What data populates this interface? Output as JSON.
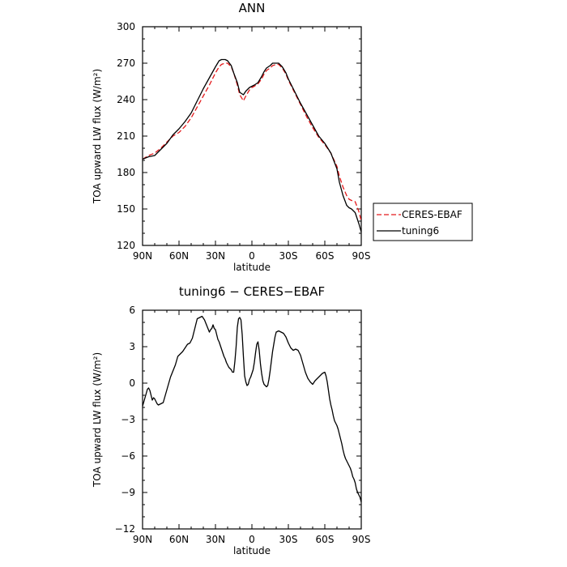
{
  "chart_data": [
    {
      "type": "line",
      "title": "ANN",
      "xlabel": "latitude",
      "ylabel": "TOA upward LW flux (W/m²)",
      "xlim": [
        90,
        -90
      ],
      "ylim": [
        120,
        300
      ],
      "xticks": [
        90,
        60,
        30,
        0,
        -30,
        -60,
        -90
      ],
      "xtick_labels": [
        "90N",
        "60N",
        "30N",
        "0",
        "30S",
        "60S",
        "90S"
      ],
      "yticks": [
        120,
        150,
        180,
        210,
        240,
        270,
        300
      ],
      "ytick_labels": [
        "120",
        "150",
        "180",
        "210",
        "240",
        "270",
        "300"
      ],
      "legend": {
        "position": "right-outside",
        "entries": [
          "CERES-EBAF",
          "tuning6"
        ]
      },
      "series": [
        {
          "name": "CERES-EBAF",
          "color": "#e41a1c",
          "dash": "dashed",
          "x": [
            90,
            85,
            80,
            75,
            70,
            65,
            60,
            55,
            50,
            45,
            40,
            35,
            30,
            27,
            25,
            22,
            20,
            17,
            15,
            12,
            10,
            7,
            5,
            2,
            0,
            -2,
            -5,
            -8,
            -10,
            -12,
            -15,
            -17,
            -20,
            -22,
            -25,
            -28,
            -30,
            -35,
            -40,
            -45,
            -50,
            -55,
            -60,
            -65,
            -70,
            -72,
            -75,
            -78,
            -80,
            -82,
            -85,
            -88,
            -90
          ],
          "y": [
            191,
            194,
            196,
            200,
            205,
            210,
            213,
            218,
            225,
            234,
            243,
            252,
            262,
            267,
            269,
            270,
            270,
            267,
            262,
            252,
            244,
            239,
            243,
            248,
            250,
            251,
            253,
            257,
            261,
            264,
            266,
            268,
            269,
            269,
            266,
            261,
            256,
            246,
            236,
            226,
            217,
            209,
            203,
            196,
            185,
            177,
            168,
            161,
            158,
            157,
            156,
            148,
            140
          ]
        },
        {
          "name": "tuning6",
          "color": "#000000",
          "dash": "solid",
          "x": [
            90,
            85,
            80,
            75,
            70,
            65,
            60,
            55,
            50,
            45,
            40,
            35,
            30,
            27,
            25,
            22,
            20,
            17,
            15,
            12,
            10,
            7,
            5,
            2,
            0,
            -2,
            -5,
            -8,
            -10,
            -12,
            -15,
            -17,
            -20,
            -22,
            -25,
            -28,
            -30,
            -35,
            -40,
            -45,
            -50,
            -55,
            -60,
            -65,
            -70,
            -72,
            -75,
            -78,
            -80,
            -82,
            -85,
            -88,
            -90
          ],
          "y": [
            191,
            193,
            194,
            199,
            204,
            211,
            216,
            222,
            229,
            239,
            249,
            258,
            267,
            272,
            273,
            273,
            272,
            268,
            262,
            254,
            246,
            244,
            247,
            250,
            251,
            252,
            254,
            259,
            263,
            266,
            268,
            270,
            270,
            270,
            267,
            262,
            257,
            247,
            237,
            228,
            219,
            210,
            204,
            196,
            183,
            172,
            161,
            153,
            151,
            150,
            147,
            138,
            131
          ]
        }
      ]
    },
    {
      "type": "line",
      "title": "tuning6 − CERES−EBAF",
      "xlabel": "latitude",
      "ylabel": "TOA upward LW flux (W/m²)",
      "xlim": [
        90,
        -90
      ],
      "ylim": [
        -12,
        6
      ],
      "xticks": [
        90,
        60,
        30,
        0,
        -30,
        -60,
        -90
      ],
      "xtick_labels": [
        "90N",
        "60N",
        "30N",
        "0",
        "30S",
        "60S",
        "90S"
      ],
      "yticks": [
        -12,
        -9,
        -6,
        -3,
        0,
        3,
        6
      ],
      "ytick_labels": [
        "−12",
        "−9",
        "−6",
        "−3",
        "0",
        "3",
        "6"
      ],
      "series": [
        {
          "color": "#000000",
          "dash": "solid",
          "x": [
            90,
            88,
            86,
            85,
            84,
            83,
            82,
            81,
            80,
            79,
            78,
            77,
            75,
            73,
            71,
            69,
            67,
            65,
            63,
            61,
            59,
            57,
            55,
            53,
            51,
            49,
            47,
            45,
            43,
            41,
            39,
            37,
            35,
            34,
            33,
            32,
            31,
            30,
            29,
            28,
            27,
            26,
            25,
            24,
            23,
            22,
            21,
            20,
            19,
            18,
            17,
            16,
            15,
            14,
            13,
            12,
            11,
            10,
            9,
            8,
            7,
            6,
            5,
            4,
            3,
            2,
            1,
            0,
            -1,
            -2,
            -3,
            -4,
            -5,
            -6,
            -7,
            -8,
            -9,
            -10,
            -11,
            -12,
            -13,
            -14,
            -15,
            -16,
            -17,
            -18,
            -19,
            -20,
            -22,
            -24,
            -26,
            -28,
            -30,
            -32,
            -34,
            -36,
            -38,
            -40,
            -42,
            -44,
            -46,
            -48,
            -50,
            -52,
            -54,
            -56,
            -58,
            -60,
            -61,
            -62,
            -63,
            -64,
            -65,
            -66,
            -67,
            -68,
            -69,
            -70,
            -71,
            -72,
            -73,
            -74,
            -75,
            -76,
            -77,
            -78,
            -79,
            -80,
            -81,
            -82,
            -83,
            -84,
            -85,
            -86,
            -87,
            -88,
            -89,
            -90
          ],
          "y": [
            -1.9,
            -1.2,
            -0.5,
            -0.4,
            -0.6,
            -1.0,
            -1.4,
            -1.2,
            -1.3,
            -1.5,
            -1.7,
            -1.8,
            -1.7,
            -1.6,
            -0.9,
            -0.2,
            0.5,
            1.0,
            1.5,
            2.2,
            2.4,
            2.6,
            2.9,
            3.2,
            3.3,
            3.7,
            4.5,
            5.3,
            5.4,
            5.5,
            5.2,
            4.7,
            4.2,
            4.4,
            4.5,
            4.8,
            4.5,
            4.4,
            4.0,
            3.6,
            3.4,
            3.1,
            2.8,
            2.5,
            2.2,
            2.0,
            1.7,
            1.5,
            1.3,
            1.2,
            1.1,
            0.9,
            0.9,
            1.8,
            3.0,
            4.6,
            5.3,
            5.4,
            5.2,
            4.0,
            2.2,
            0.6,
            0.1,
            -0.2,
            -0.1,
            0.3,
            0.5,
            0.8,
            1.1,
            1.7,
            2.5,
            3.2,
            3.4,
            2.7,
            1.6,
            0.8,
            0.2,
            -0.1,
            -0.2,
            -0.3,
            -0.2,
            0.3,
            1.0,
            1.8,
            2.6,
            3.2,
            3.8,
            4.2,
            4.3,
            4.2,
            4.1,
            3.8,
            3.3,
            2.9,
            2.7,
            2.8,
            2.7,
            2.3,
            1.6,
            0.9,
            0.4,
            0.1,
            -0.1,
            0.2,
            0.4,
            0.6,
            0.8,
            0.9,
            0.6,
            0.1,
            -0.6,
            -1.3,
            -1.8,
            -2.2,
            -2.7,
            -3.1,
            -3.3,
            -3.5,
            -3.8,
            -4.2,
            -4.6,
            -5.0,
            -5.5,
            -5.9,
            -6.2,
            -6.4,
            -6.6,
            -6.8,
            -7.0,
            -7.3,
            -7.7,
            -7.9,
            -8.2,
            -8.7,
            -9.0,
            -9.2,
            -9.4,
            -9.8
          ]
        }
      ]
    }
  ]
}
